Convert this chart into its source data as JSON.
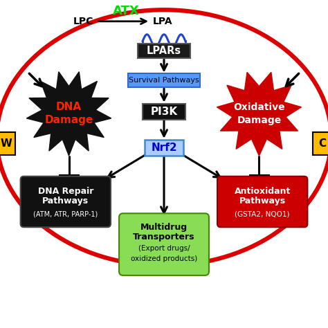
{
  "bg_color": "#ffffff",
  "lpc_text": "LPC",
  "atx_text": "ATX",
  "lpa_text": "LPA",
  "lpars_text": "LPARs",
  "survival_text": "Survival Pathways",
  "pi3k_text": "PI3K",
  "nrf2_text": "Nrf2",
  "left_label": "W",
  "right_label": "C",
  "atx_color": "#00dd00",
  "lpars_box_color": "#1a1a1a",
  "lpars_text_color": "#ffffff",
  "survival_box_color": "#5599ff",
  "survival_text_color": "#000000",
  "pi3k_box_color": "#111111",
  "pi3k_text_color": "#ffffff",
  "nrf2_box_color": "#aaccff",
  "nrf2_text_color": "#0000cc",
  "dna_damage_color": "#111111",
  "dna_damage_text_color": "#ff2200",
  "oxidative_damage_color": "#cc0000",
  "oxidative_damage_text_color": "#ffffff",
  "dna_repair_box_color": "#111111",
  "dna_repair_text_color": "#ffffff",
  "antioxidant_box_color": "#cc0000",
  "antioxidant_text_color": "#ffffff",
  "multidrug_box_color": "#88dd55",
  "multidrug_text_color": "#000000",
  "red_oval_color": "#dd0000",
  "label_box_color": "#ffbb00",
  "wave_color": "#2244cc",
  "arrow_color": "#000000"
}
